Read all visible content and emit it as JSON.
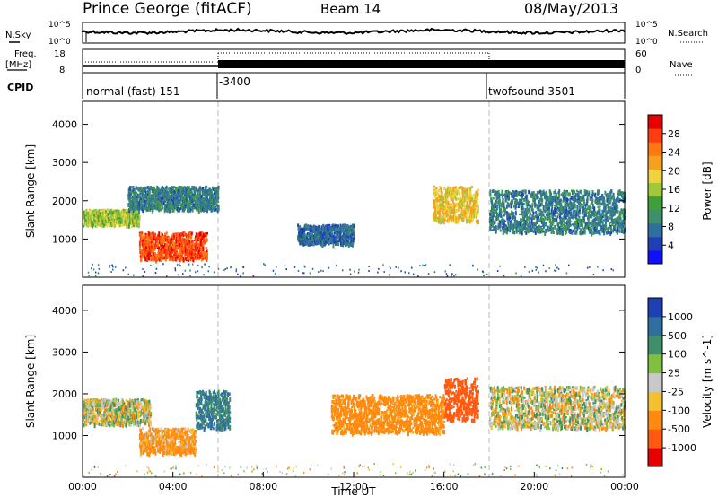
{
  "header": {
    "station": "Prince George (fitACF)",
    "beam": "Beam 14",
    "date": "08/May/2013"
  },
  "left_labels": {
    "nsky": "N.Sky",
    "freq_line1": "Freq.",
    "freq_line2": "[MHz]",
    "cpid": "CPID"
  },
  "right_labels": {
    "nsearch": "N.Search",
    "nave": "Nave"
  },
  "noise_axis_ticks": [
    "10^5",
    "10^0"
  ],
  "freq_axis_ticks": [
    "18",
    "8"
  ],
  "nave_axis_ticks": [
    "60",
    "0"
  ],
  "cpid_segments": [
    {
      "label": "normal (fast) 151"
    },
    {
      "label": "-3400"
    },
    {
      "label": "twofsound 3501"
    }
  ],
  "chart_data": [
    {
      "type": "heatmap",
      "quantity": "Power",
      "ylabel": "Slant Range [km]",
      "xlabel": "Time UT",
      "ylim": [
        0,
        4600
      ],
      "yticks": [
        "1000",
        "2000",
        "3000",
        "4000"
      ],
      "xticks": [
        "00:00",
        "04:00",
        "08:00",
        "12:00",
        "16:00",
        "20:00",
        "00:00"
      ],
      "colorbar_label": "Power [dB]",
      "colorbar_ticks": [
        "4",
        "8",
        "12",
        "16",
        "20",
        "24",
        "28"
      ],
      "colorbar_colors": [
        "#1010ff",
        "#1e40b4",
        "#2f6fa0",
        "#3f8f6a",
        "#3fa03a",
        "#9fc83a",
        "#f0d23a",
        "#f5a01e",
        "#ff7810",
        "#ff3c10",
        "#e60000"
      ],
      "echo_regions": [
        {
          "t_start": 0.0,
          "t_end": 2.5,
          "range_km": [
            1400,
            1800
          ],
          "level_db": 16
        },
        {
          "t_start": 2.5,
          "t_end": 5.5,
          "range_km": [
            500,
            1200
          ],
          "level_db": 28
        },
        {
          "t_start": 2.0,
          "t_end": 6.0,
          "range_km": [
            1800,
            2400
          ],
          "level_db": 8
        },
        {
          "t_start": 9.5,
          "t_end": 12.0,
          "range_km": [
            900,
            1400
          ],
          "level_db": 6
        },
        {
          "t_start": 15.5,
          "t_end": 17.5,
          "range_km": [
            1500,
            2400
          ],
          "level_db": 20
        },
        {
          "t_start": 18.0,
          "t_end": 24.0,
          "range_km": [
            1200,
            2300
          ],
          "level_db": 8
        }
      ]
    },
    {
      "type": "heatmap",
      "quantity": "Velocity",
      "ylabel": "Slant Range [km]",
      "xlabel": "Time UT",
      "ylim": [
        0,
        4600
      ],
      "yticks": [
        "1000",
        "2000",
        "3000",
        "4000"
      ],
      "xticks": [
        "00:00",
        "04:00",
        "08:00",
        "12:00",
        "16:00",
        "20:00",
        "00:00"
      ],
      "colorbar_label": "Velocity [m s^-1]",
      "colorbar_ticks": [
        "1000",
        "500",
        "100",
        "25",
        "-25",
        "-100",
        "-500",
        "-1000"
      ],
      "colorbar_colors": [
        "#1e40b4",
        "#2f6fa0",
        "#3f8f6a",
        "#7fc040",
        "#c8c8c8",
        "#f5c030",
        "#ff8a10",
        "#ff5a10",
        "#e60000"
      ],
      "echo_regions": [
        {
          "t_start": 0.0,
          "t_end": 3.0,
          "range_km": [
            1300,
            1900
          ],
          "velocity": 0
        },
        {
          "t_start": 2.5,
          "t_end": 5.0,
          "range_km": [
            600,
            1200
          ],
          "velocity": -100
        },
        {
          "t_start": 5.0,
          "t_end": 6.5,
          "range_km": [
            1200,
            2100
          ],
          "velocity": 300
        },
        {
          "t_start": 11.0,
          "t_end": 16.0,
          "range_km": [
            1100,
            2000
          ],
          "velocity": -150
        },
        {
          "t_start": 16.0,
          "t_end": 17.5,
          "range_km": [
            1400,
            2400
          ],
          "velocity": -600
        },
        {
          "t_start": 18.0,
          "t_end": 24.0,
          "range_km": [
            1200,
            2200
          ],
          "velocity": 0
        }
      ]
    }
  ]
}
